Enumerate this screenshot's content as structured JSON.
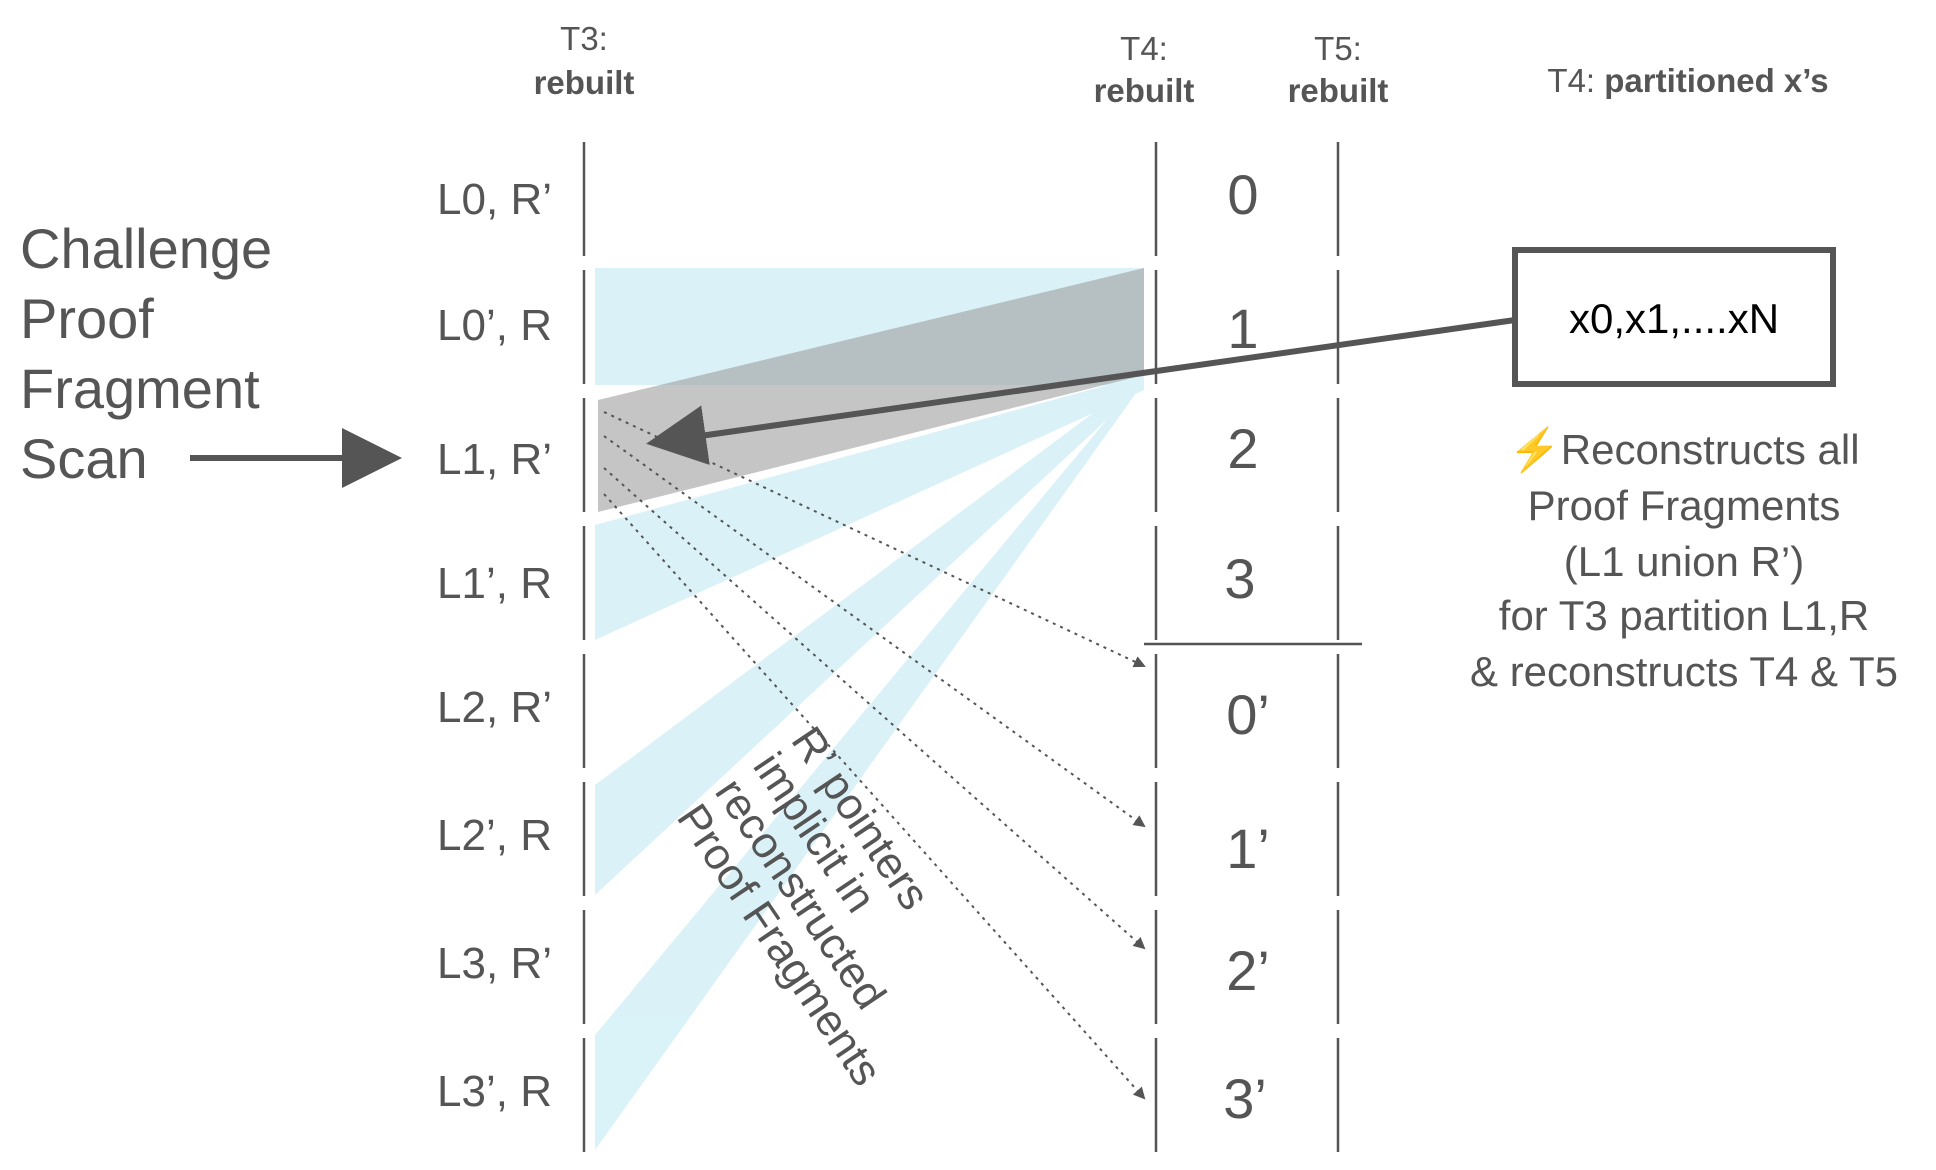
{
  "headers": {
    "t3_prefix": "T3:",
    "t3_label": "rebuilt",
    "t4_prefix": "T4:",
    "t4_label": "rebuilt",
    "t5_prefix": "T5:",
    "t5_label": "rebuilt",
    "xs_prefix": "T4: ",
    "xs_label": "partitioned x’s"
  },
  "side_label": [
    "Challenge",
    "Proof",
    "Fragment",
    "Scan"
  ],
  "rows": [
    "L0, R’",
    "L0’, R",
    "L1, R’",
    "L1’, R",
    "L2, R’",
    "L2’, R",
    "L3, R’",
    "L3’, R"
  ],
  "t4_cells": [
    "0",
    "1",
    "2",
    "3",
    "0’",
    "1’",
    "2’",
    "3’"
  ],
  "x_box": "x0,x1,....xN",
  "note_lines": [
    "⚡Reconstructs all",
    "Proof Fragments",
    "(L1 union R’)",
    "for T3 partition L1,R",
    "& reconstructs T4 & T5"
  ],
  "rotated_note": [
    "R’ pointers",
    "implicit in",
    "reconstructed",
    "Proof Fragments"
  ],
  "colors": {
    "text": "#555555",
    "line": "#555555",
    "band": "#aee4ef",
    "highlight": "#9e9e9e",
    "box_border": "#555555"
  }
}
